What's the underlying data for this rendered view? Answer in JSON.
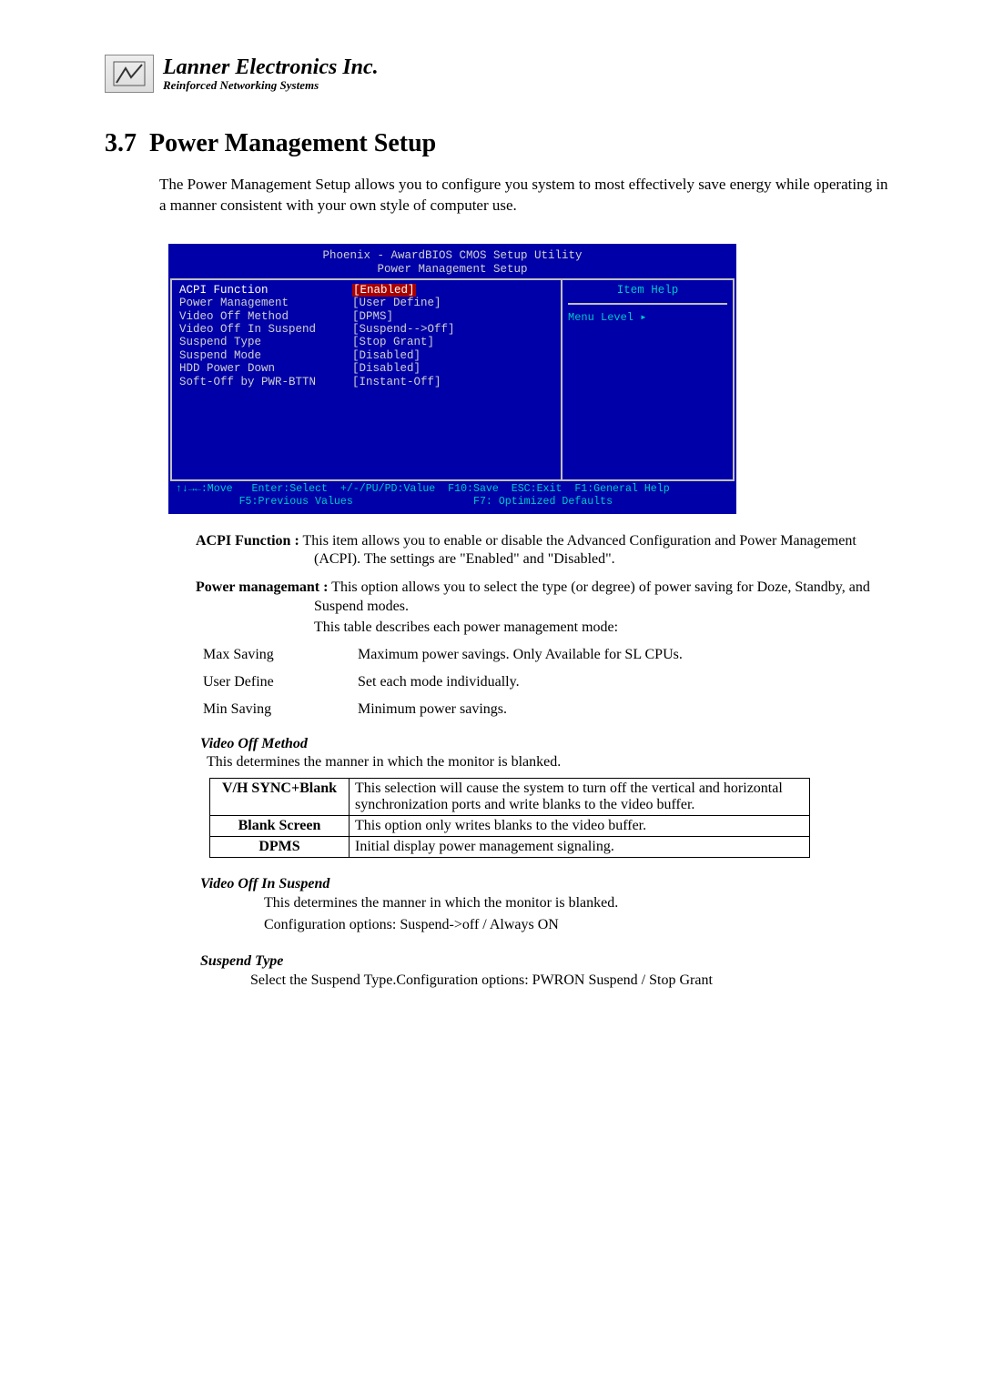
{
  "brand": {
    "main": "Lanner Electronics Inc.",
    "sub": "Reinforced Networking Systems"
  },
  "section": {
    "number": "3.7",
    "title": "Power Management Setup",
    "intro": "The Power Management Setup allows you to configure you system to most effectively save energy while operating in a manner consistent with your own style of computer use."
  },
  "bios": {
    "title_line1": "Phoenix - AwardBIOS CMOS Setup Utility",
    "title_line2": "Power Management Setup",
    "rows": [
      {
        "label": "ACPI Function",
        "value": "[Enabled]",
        "selected": true
      },
      {
        "label": "Power Management",
        "value": "[User Define]",
        "selected": false
      },
      {
        "label": "Video Off Method",
        "value": "[DPMS]",
        "selected": false
      },
      {
        "label": "Video Off In Suspend",
        "value": "[Suspend-->Off]",
        "selected": false
      },
      {
        "label": "Suspend Type",
        "value": "[Stop Grant]",
        "selected": false
      },
      {
        "label": "Suspend Mode",
        "value": "[Disabled]",
        "selected": false
      },
      {
        "label": "HDD Power Down",
        "value": "[Disabled]",
        "selected": false
      },
      {
        "label": "Soft-Off by PWR-BTTN",
        "value": "[Instant-Off]",
        "selected": false
      }
    ],
    "help_title": "Item Help",
    "menu_level": "Menu Level   ▸",
    "footer_line1": "↑↓→←:Move   Enter:Select  +/-/PU/PD:Value  F10:Save  ESC:Exit  F1:General Help",
    "footer_line2": "          F5:Previous Values                   F7: Optimized Defaults",
    "colors": {
      "background": "#0000a8",
      "selected_bg": "#a80000",
      "text_dim": "#d0d0d0",
      "accent": "#00c8c8",
      "border": "#c0c0c0"
    }
  },
  "descriptions": {
    "acpi_label": "ACPI Function :",
    "acpi_text": " This item allows you to enable or disable the Advanced Configuration and Power Management (ACPI).  The settings are \"Enabled\" and \"Disabled\".",
    "pm_label": "Power managemant :",
    "pm_text1": " This option allows you to select the type (or degree) of power saving for Doze, Standby, and Suspend modes.",
    "pm_text2": "This table describes each power management mode:"
  },
  "pm_modes": [
    {
      "key": "Max Saving",
      "desc": "Maximum power savings. Only Available for SL CPUs."
    },
    {
      "key": "User Define",
      "desc": "Set each mode individually."
    },
    {
      "key": "Min Saving",
      "desc": "Minimum power savings."
    }
  ],
  "video_off_method": {
    "heading": "Video Off Method",
    "lead": "This determines the manner in which the monitor is blanked.",
    "rows": [
      {
        "k": "V/H SYNC+Blank",
        "v": "This selection will cause the system to turn off the vertical and horizontal synchronization ports and write blanks to the video buffer."
      },
      {
        "k": "Blank Screen",
        "v": "This option only writes blanks to the video buffer."
      },
      {
        "k": "DPMS",
        "v": "Initial display power management signaling."
      }
    ]
  },
  "video_off_suspend": {
    "heading": "Video Off In Suspend",
    "line1": "This determines the manner in which the monitor is blanked.",
    "line2": "Configuration options: Suspend->off / Always ON"
  },
  "suspend_type": {
    "heading": "Suspend Type",
    "line": "Select the Suspend Type.Configuration options: PWRON Suspend / Stop Grant"
  }
}
